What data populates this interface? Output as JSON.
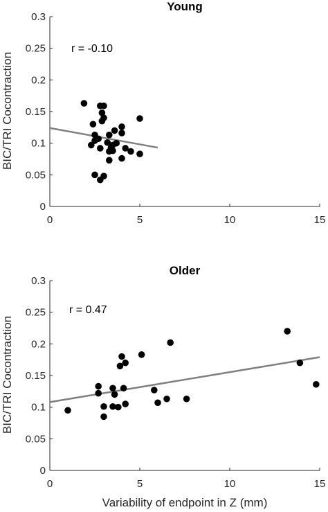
{
  "chart_data": [
    {
      "type": "scatter",
      "title": "Young",
      "xlabel": "",
      "ylabel": "BIC/TRI Cocontraction",
      "xlim": [
        0,
        15
      ],
      "ylim": [
        0,
        0.3
      ],
      "xticks": [
        0,
        5,
        10,
        15
      ],
      "xtick_labels": [
        "0",
        "5",
        "10",
        "15"
      ],
      "yticks": [
        0,
        0.05,
        0.1,
        0.15,
        0.2,
        0.25,
        0.3
      ],
      "ytick_labels": [
        "0",
        "0.05",
        "0.1",
        "0.15",
        "0.2",
        "0.25",
        "0.3"
      ],
      "annotation": "r = -0.10",
      "grid": false,
      "series": [
        {
          "color": "#000000",
          "points": [
            [
              1.9,
              0.163
            ],
            [
              2.8,
              0.159
            ],
            [
              3.0,
              0.159
            ],
            [
              2.9,
              0.148
            ],
            [
              3.0,
              0.14
            ],
            [
              2.9,
              0.135
            ],
            [
              2.4,
              0.13
            ],
            [
              4.0,
              0.126
            ],
            [
              3.6,
              0.12
            ],
            [
              3.3,
              0.113
            ],
            [
              4.0,
              0.116
            ],
            [
              2.5,
              0.113
            ],
            [
              5.0,
              0.139
            ],
            [
              2.7,
              0.107
            ],
            [
              2.5,
              0.104
            ],
            [
              3.2,
              0.101
            ],
            [
              3.7,
              0.1
            ],
            [
              2.3,
              0.097
            ],
            [
              3.5,
              0.097
            ],
            [
              3.4,
              0.093
            ],
            [
              2.8,
              0.092
            ],
            [
              4.2,
              0.092
            ],
            [
              3.5,
              0.088
            ],
            [
              3.3,
              0.087
            ],
            [
              4.5,
              0.087
            ],
            [
              5.0,
              0.083
            ],
            [
              4.0,
              0.076
            ],
            [
              3.3,
              0.073
            ],
            [
              2.5,
              0.05
            ],
            [
              3.0,
              0.048
            ],
            [
              2.8,
              0.042
            ]
          ]
        }
      ],
      "fit_line": {
        "color": "#808080",
        "x": [
          0,
          6.0
        ],
        "y": [
          0.124,
          0.093
        ]
      }
    },
    {
      "type": "scatter",
      "title": "Older",
      "xlabel": "Variability of endpoint in Z (mm)",
      "ylabel": "BIC/TRI Cocontraction",
      "xlim": [
        0,
        15
      ],
      "ylim": [
        0,
        0.3
      ],
      "xticks": [
        0,
        5,
        10,
        15
      ],
      "xtick_labels": [
        "0",
        "5",
        "10",
        "15"
      ],
      "yticks": [
        0,
        0.05,
        0.1,
        0.15,
        0.2,
        0.25,
        0.3
      ],
      "ytick_labels": [
        "0",
        "0.05",
        "0.1",
        "0.15",
        "0.2",
        "0.25",
        "0.3"
      ],
      "annotation": "r = 0.47",
      "grid": false,
      "series": [
        {
          "color": "#000000",
          "points": [
            [
              1.0,
              0.095
            ],
            [
              2.7,
              0.133
            ],
            [
              2.7,
              0.122
            ],
            [
              3.0,
              0.101
            ],
            [
              3.0,
              0.085
            ],
            [
              3.5,
              0.13
            ],
            [
              3.6,
              0.12
            ],
            [
              3.5,
              0.101
            ],
            [
              3.8,
              0.1
            ],
            [
              3.9,
              0.165
            ],
            [
              4.0,
              0.18
            ],
            [
              4.2,
              0.17
            ],
            [
              4.1,
              0.13
            ],
            [
              4.2,
              0.105
            ],
            [
              5.1,
              0.183
            ],
            [
              5.8,
              0.127
            ],
            [
              6.0,
              0.107
            ],
            [
              6.5,
              0.113
            ],
            [
              6.7,
              0.202
            ],
            [
              7.6,
              0.113
            ],
            [
              13.2,
              0.22
            ],
            [
              13.9,
              0.17
            ],
            [
              14.8,
              0.136
            ]
          ]
        }
      ],
      "fit_line": {
        "color": "#808080",
        "x": [
          0,
          15.0
        ],
        "y": [
          0.108,
          0.179
        ]
      }
    }
  ]
}
